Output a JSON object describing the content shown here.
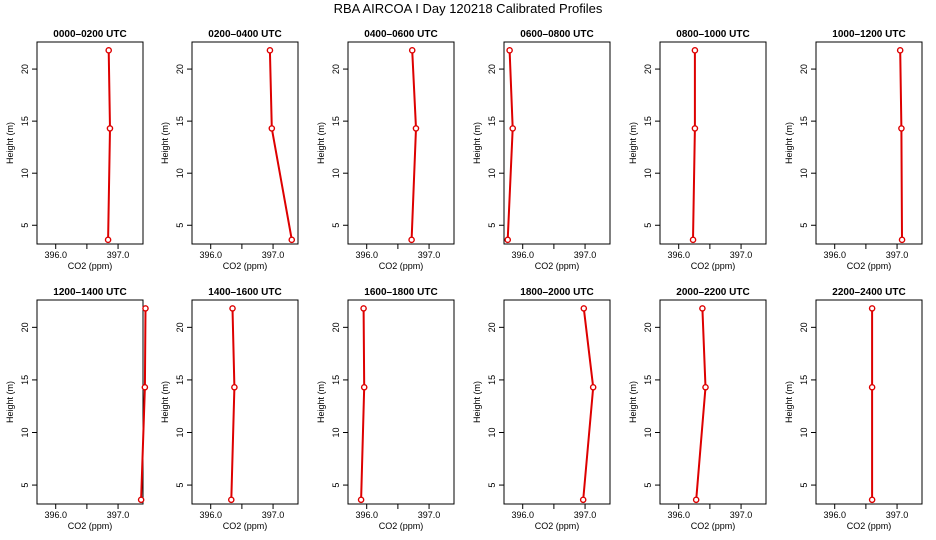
{
  "title": "RBA AIRCOA I  Day 120218  Calibrated Profiles",
  "chart_data": {
    "type": "line",
    "title": "RBA AIRCOA I  Day 120218  Calibrated Profiles",
    "xlabel": "CO2 (ppm)",
    "ylabel": "Height (m)",
    "xlim": [
      395.7,
      397.4
    ],
    "ylim": [
      3.2,
      22.6
    ],
    "x_ticks": [
      396.0,
      396.5,
      397.0
    ],
    "x_tick_labels": [
      "396.0",
      "",
      "397.0"
    ],
    "y_ticks": [
      5,
      10,
      15,
      20
    ],
    "y_tick_labels": [
      "5",
      "10",
      "15",
      "20"
    ],
    "color": "#dd0000",
    "marker": "open-circle",
    "grid": false,
    "panels": [
      {
        "title": "0000–0200 UTC",
        "heights": [
          3.6,
          14.3,
          21.8
        ],
        "co2": [
          396.84,
          396.87,
          396.85
        ]
      },
      {
        "title": "0200–0400 UTC",
        "heights": [
          3.6,
          14.3,
          21.8
        ],
        "co2": [
          397.3,
          396.98,
          396.95
        ]
      },
      {
        "title": "0400–0600 UTC",
        "heights": [
          3.6,
          14.3,
          21.8
        ],
        "co2": [
          396.72,
          396.79,
          396.73
        ]
      },
      {
        "title": "0600–0800 UTC",
        "heights": [
          3.6,
          14.3,
          21.8
        ],
        "co2": [
          395.76,
          395.84,
          395.79
        ]
      },
      {
        "title": "0800–1000 UTC",
        "heights": [
          3.6,
          14.3,
          21.8
        ],
        "co2": [
          396.23,
          396.26,
          396.26
        ]
      },
      {
        "title": "1000–1200 UTC",
        "heights": [
          3.6,
          14.3,
          21.8
        ],
        "co2": [
          397.08,
          397.07,
          397.05
        ]
      },
      {
        "title": "1200–1400 UTC",
        "heights": [
          3.6,
          14.3,
          21.8
        ],
        "co2": [
          397.37,
          397.43,
          397.44
        ]
      },
      {
        "title": "1400–1600 UTC",
        "heights": [
          3.6,
          14.3,
          21.8
        ],
        "co2": [
          396.33,
          396.38,
          396.35
        ]
      },
      {
        "title": "1600–1800 UTC",
        "heights": [
          3.6,
          14.3,
          21.8
        ],
        "co2": [
          395.91,
          395.96,
          395.95
        ]
      },
      {
        "title": "1800–2000 UTC",
        "heights": [
          3.6,
          14.3,
          21.8
        ],
        "co2": [
          396.97,
          397.13,
          396.98
        ]
      },
      {
        "title": "2000–2200 UTC",
        "heights": [
          3.6,
          14.3,
          21.8
        ],
        "co2": [
          396.28,
          396.43,
          396.38
        ]
      },
      {
        "title": "2200–2400 UTC",
        "heights": [
          3.6,
          14.3,
          21.8
        ],
        "co2": [
          396.6,
          396.6,
          396.6
        ]
      }
    ]
  }
}
